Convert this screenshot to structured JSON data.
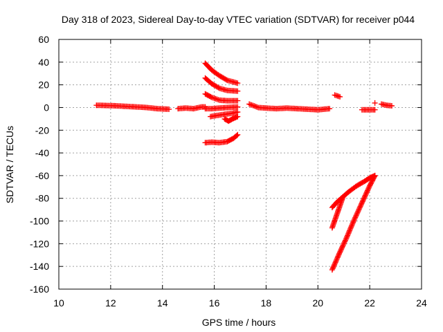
{
  "chart_data": {
    "type": "scatter",
    "title": "Day 318 of 2023, Sidereal Day-to-day VTEC variation (SDTVAR) for receiver p044",
    "xlabel": "GPS time / hours",
    "ylabel": "SDTVAR / TECUs",
    "xlim": [
      10,
      24
    ],
    "ylim": [
      -160,
      60
    ],
    "xticks": [
      10,
      12,
      14,
      16,
      18,
      20,
      22,
      24
    ],
    "yticks": [
      -160,
      -140,
      -120,
      -100,
      -80,
      -60,
      -40,
      -20,
      0,
      20,
      40,
      60
    ],
    "grid": true,
    "legend": "none",
    "marker": "plus",
    "color": "#ff0000",
    "series": [
      {
        "x": [
          11.45,
          11.8,
          12.2,
          12.6,
          13.0,
          13.4,
          13.8,
          14.25
        ],
        "y": [
          2,
          1.8,
          1.5,
          1,
          0.5,
          0,
          -1,
          -1.5
        ]
      },
      {
        "x": [
          14.6,
          14.9,
          15.2,
          15.5,
          15.65
        ],
        "y": [
          -1,
          -0.5,
          -1,
          0.5,
          0.5
        ]
      },
      {
        "x": [
          15.65,
          15.9,
          16.2,
          16.5,
          16.9
        ],
        "y": [
          39,
          33,
          28,
          24,
          21.5
        ]
      },
      {
        "x": [
          15.65,
          15.9,
          16.2,
          16.5,
          16.9
        ],
        "y": [
          26,
          21,
          17,
          15,
          14.5
        ]
      },
      {
        "x": [
          15.65,
          15.9,
          16.2,
          16.5,
          16.9
        ],
        "y": [
          12,
          9,
          6.5,
          6,
          6
        ]
      },
      {
        "x": [
          15.65,
          15.9,
          16.2,
          16.5,
          16.9
        ],
        "y": [
          -1,
          -1,
          -0.5,
          0,
          0.5
        ]
      },
      {
        "x": [
          15.85,
          16.1,
          16.4,
          16.7,
          16.9
        ],
        "y": [
          -8,
          -7,
          -6,
          -5,
          -4
        ]
      },
      {
        "x": [
          16.4,
          16.55,
          16.7,
          16.9
        ],
        "y": [
          -10,
          -12,
          -10,
          -8
        ]
      },
      {
        "x": [
          15.65,
          15.9,
          16.2,
          16.5,
          16.75,
          16.9
        ],
        "y": [
          -31,
          -30.5,
          -31,
          -30,
          -27,
          -24
        ]
      },
      {
        "x": [
          17.35,
          17.7,
          18.0,
          18.4,
          18.8,
          19.2,
          19.6,
          20.0,
          20.45
        ],
        "y": [
          3,
          0,
          -0.5,
          -1,
          -0.5,
          -1,
          -1.5,
          -2,
          -1
        ]
      },
      {
        "x": [
          20.65,
          20.85
        ],
        "y": [
          11,
          9.5
        ]
      },
      {
        "x": [
          21.7,
          21.95,
          22.2
        ],
        "y": [
          -2,
          -2,
          -2
        ]
      },
      {
        "x": [
          22.2
        ],
        "y": [
          4
        ]
      },
      {
        "x": [
          22.45,
          22.65,
          22.85
        ],
        "y": [
          3,
          2,
          1.5
        ]
      },
      {
        "x": [
          20.55,
          20.75,
          20.95,
          21.2,
          21.5,
          21.8,
          22.0,
          22.2
        ],
        "y": [
          -88,
          -83,
          -79,
          -74,
          -69,
          -65,
          -62,
          -60
        ]
      },
      {
        "x": [
          20.55,
          20.75,
          20.95
        ],
        "y": [
          -106,
          -93,
          -80
        ]
      },
      {
        "x": [
          20.55,
          20.8,
          21.1,
          21.4,
          21.7,
          22.0,
          22.2
        ],
        "y": [
          -143,
          -130,
          -115,
          -99,
          -84,
          -69,
          -60
        ]
      }
    ]
  }
}
